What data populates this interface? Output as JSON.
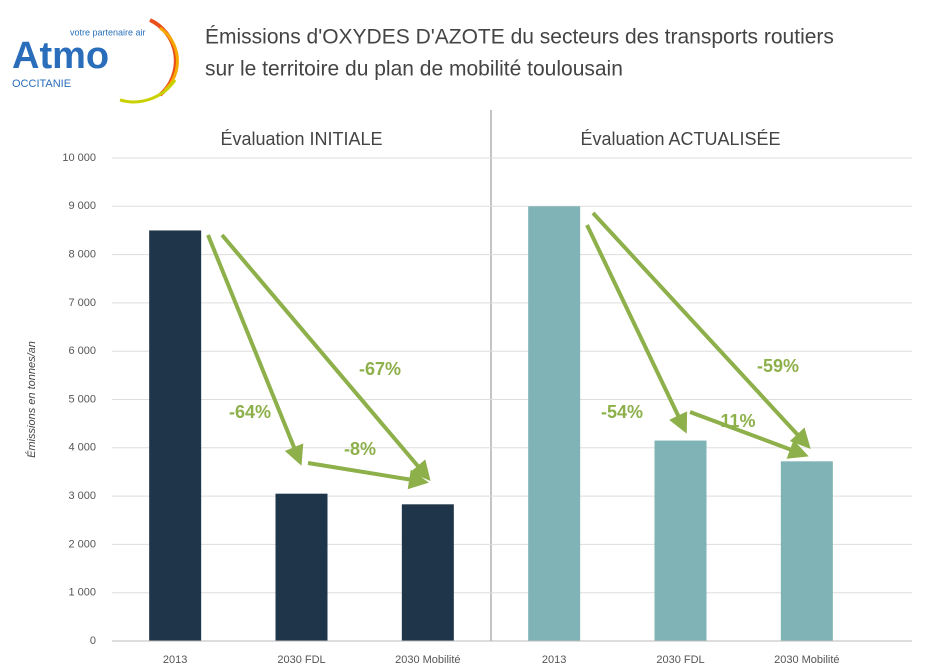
{
  "header": {
    "logo": "Atmo",
    "logo_tagline": "votre partenaire air",
    "logo_region": "OCCITANIE",
    "title_lines": [
      "Émissions d'OXYDES D'AZOTE du secteurs des transports routiers",
      "sur le territoire du plan de mobilité toulousain"
    ]
  },
  "chart_data": [
    {
      "type": "bar",
      "title": "Évaluation INITIALE",
      "y_label": "Émissions en tonnes/an",
      "categories": [
        "2013",
        "2030  FDL",
        "2030  Mobilité"
      ],
      "values": [
        8500,
        3050,
        2830
      ],
      "color": "#1f3549",
      "ylim": [
        0,
        10000
      ],
      "yticks": [
        0,
        {
          "value": 1000,
          "label": "1 000"
        },
        {
          "value": 2000,
          "label": "2 000"
        },
        {
          "value": 3000,
          "label": "3 000"
        },
        {
          "value": 4000,
          "label": "4 000"
        },
        {
          "value": 5000,
          "label": "5 000"
        },
        {
          "value": 6000,
          "label": "6 000"
        },
        {
          "value": 7000,
          "label": "7 000"
        },
        {
          "value": 8000,
          "label": "8 000"
        },
        {
          "value": 9000,
          "label": "9 000"
        },
        {
          "value": 10000,
          "label": "10 000"
        }
      ],
      "grid": true,
      "annotations": [
        "-64%",
        "-8%",
        "-67%"
      ]
    },
    {
      "type": "bar",
      "title": "Évaluation ACTUALISÉE",
      "categories": [
        "2013",
        "2030  FDL",
        "2030  Mobilité"
      ],
      "values": [
        9000,
        4150,
        3720
      ],
      "color": "#7fb3b5",
      "ylim": [
        0,
        10000
      ],
      "yticks": [
        0,
        {
          "value": 1000,
          "label": "1 000"
        },
        {
          "value": 2000,
          "label": "2 000"
        },
        {
          "value": 3000,
          "label": "3 000"
        },
        {
          "value": 4000,
          "label": "4 000"
        },
        {
          "value": 5000,
          "label": "5 000"
        },
        {
          "value": 6000,
          "label": "6 000"
        },
        {
          "value": 7000,
          "label": "7 000"
        },
        {
          "value": 8000,
          "label": "8 000"
        },
        {
          "value": 9000,
          "label": "9 000"
        },
        {
          "value": 10000,
          "label": "10 000"
        }
      ],
      "grid": true,
      "annotations": [
        "-54%",
        "-11%",
        "-59%"
      ]
    }
  ]
}
